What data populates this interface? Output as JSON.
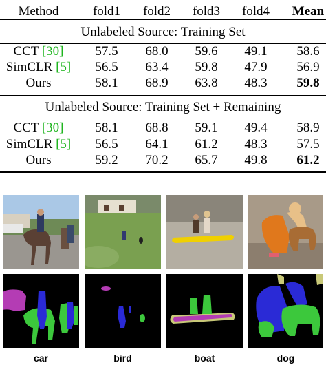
{
  "table": {
    "headers": [
      "Method",
      "fold1",
      "fold2",
      "fold3",
      "fold4",
      "Mean"
    ],
    "sections": [
      {
        "title": "Unlabeled Source: Training Set",
        "rows": [
          {
            "method": "CCT",
            "cite": "30",
            "values": [
              "57.5",
              "68.0",
              "59.6",
              "49.1",
              "58.6"
            ],
            "mean_bold": false
          },
          {
            "method": "SimCLR",
            "cite": "5",
            "values": [
              "56.5",
              "63.4",
              "59.8",
              "47.9",
              "56.9"
            ],
            "mean_bold": false
          },
          {
            "method": "Ours",
            "cite": "",
            "values": [
              "58.1",
              "68.9",
              "63.8",
              "48.3",
              "59.8"
            ],
            "mean_bold": true
          }
        ]
      },
      {
        "title": "Unlabeled Source: Training Set + Remaining",
        "rows": [
          {
            "method": "CCT",
            "cite": "30",
            "values": [
              "58.1",
              "68.8",
              "59.1",
              "49.4",
              "58.9"
            ],
            "mean_bold": false
          },
          {
            "method": "SimCLR",
            "cite": "5",
            "values": [
              "56.5",
              "64.1",
              "61.2",
              "48.3",
              "57.5"
            ],
            "mean_bold": false
          },
          {
            "method": "Ours",
            "cite": "",
            "values": [
              "59.2",
              "70.2",
              "65.7",
              "49.8",
              "61.2"
            ],
            "mean_bold": true
          }
        ]
      }
    ]
  },
  "figure": {
    "captions": [
      "car",
      "bird",
      "boat",
      "dog"
    ],
    "colors": {
      "horse": "#3cc83c",
      "person": "#2a2ad6",
      "car": "#b43cb4",
      "bird": "#b43cb4",
      "boat": "#b43cb4",
      "dog": "#3cc83c",
      "border": "#c8c878"
    }
  }
}
